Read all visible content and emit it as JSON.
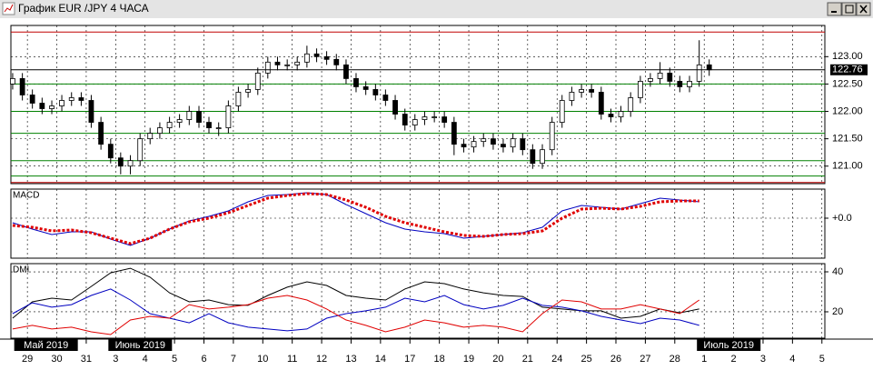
{
  "window_title": "График EUR /JPY  4 ЧАСА",
  "chart_data": [
    {
      "type": "candlestick",
      "x": [
        -0.5,
        -0.17,
        0.17,
        0.5,
        0.83,
        1.17,
        1.5,
        1.83,
        2.17,
        2.5,
        2.83,
        3.17,
        3.5,
        3.83,
        4.17,
        4.5,
        4.83,
        5.17,
        5.5,
        5.83,
        6.17,
        6.5,
        6.83,
        7.17,
        7.5,
        7.83,
        8.17,
        8.5,
        8.83,
        9.17,
        9.5,
        9.83,
        10.17,
        10.5,
        10.83,
        11.17,
        11.5,
        11.83,
        12.17,
        12.5,
        12.83,
        13.17,
        13.5,
        13.83,
        14.17,
        14.5,
        14.83,
        15.17,
        15.5,
        15.83,
        16.17,
        16.5,
        16.83,
        17.17,
        17.5,
        17.83,
        18.17,
        18.5,
        18.83,
        19.17,
        19.5,
        19.83,
        20.17,
        20.5,
        20.83,
        21.17,
        21.5,
        21.83,
        22.17,
        22.5,
        22.83,
        23.17
      ],
      "open": [
        122.5,
        122.6,
        122.3,
        122.15,
        122.05,
        122.1,
        122.2,
        122.25,
        122.2,
        121.8,
        121.4,
        121.15,
        121.0,
        121.1,
        121.5,
        121.6,
        121.7,
        121.8,
        121.85,
        122.0,
        121.8,
        121.7,
        121.7,
        122.1,
        122.35,
        122.4,
        122.7,
        122.9,
        122.85,
        122.85,
        122.9,
        123.05,
        123.0,
        122.95,
        122.85,
        122.6,
        122.45,
        122.4,
        122.3,
        122.2,
        121.95,
        121.75,
        121.85,
        121.9,
        121.9,
        121.8,
        121.4,
        121.35,
        121.45,
        121.5,
        121.4,
        121.35,
        121.5,
        121.3,
        121.05,
        121.3,
        121.8,
        122.2,
        122.35,
        122.4,
        122.35,
        121.95,
        121.9,
        122.0,
        122.25,
        122.55,
        122.6,
        122.7,
        122.55,
        122.45,
        122.55,
        122.85
      ],
      "high": [
        122.7,
        122.7,
        122.4,
        122.25,
        122.2,
        122.3,
        122.35,
        122.35,
        122.3,
        121.9,
        121.5,
        121.25,
        121.2,
        121.6,
        121.7,
        121.8,
        121.9,
        121.95,
        122.1,
        122.1,
        121.9,
        121.8,
        122.2,
        122.45,
        122.5,
        122.8,
        123.0,
        123.0,
        122.95,
        123.0,
        123.2,
        123.15,
        123.1,
        123.05,
        122.95,
        122.7,
        122.55,
        122.5,
        122.4,
        122.3,
        122.05,
        121.95,
        122.0,
        122.0,
        122.0,
        121.9,
        121.5,
        121.55,
        121.6,
        121.6,
        121.5,
        121.6,
        121.6,
        121.4,
        121.4,
        121.9,
        122.3,
        122.45,
        122.5,
        122.5,
        122.45,
        122.05,
        122.1,
        122.35,
        122.65,
        122.7,
        122.9,
        122.8,
        122.65,
        122.65,
        123.3,
        122.95
      ],
      "low": [
        122.4,
        122.2,
        122.05,
        121.95,
        121.95,
        122.0,
        122.1,
        122.1,
        121.7,
        121.3,
        121.05,
        120.85,
        120.85,
        121.0,
        121.4,
        121.5,
        121.6,
        121.7,
        121.75,
        121.7,
        121.6,
        121.55,
        121.6,
        122.0,
        122.25,
        122.3,
        122.6,
        122.75,
        122.75,
        122.75,
        122.8,
        122.9,
        122.85,
        122.75,
        122.5,
        122.35,
        122.3,
        122.2,
        122.1,
        121.85,
        121.65,
        121.65,
        121.75,
        121.8,
        121.7,
        121.2,
        121.25,
        121.25,
        121.35,
        121.3,
        121.25,
        121.25,
        121.2,
        120.95,
        120.95,
        121.2,
        121.7,
        122.1,
        122.25,
        122.25,
        121.85,
        121.8,
        121.8,
        121.9,
        122.15,
        122.45,
        122.5,
        122.45,
        122.35,
        122.35,
        122.45,
        122.65
      ],
      "close": [
        122.6,
        122.3,
        122.15,
        122.05,
        122.1,
        122.2,
        122.25,
        122.2,
        121.8,
        121.4,
        121.15,
        121.0,
        121.1,
        121.5,
        121.6,
        121.7,
        121.8,
        121.85,
        122.0,
        121.8,
        121.7,
        121.7,
        122.1,
        122.35,
        122.4,
        122.7,
        122.9,
        122.85,
        122.85,
        122.9,
        123.05,
        123.0,
        122.95,
        122.85,
        122.6,
        122.45,
        122.4,
        122.3,
        122.2,
        121.95,
        121.75,
        121.85,
        121.9,
        121.9,
        121.8,
        121.4,
        121.35,
        121.45,
        121.5,
        121.4,
        121.35,
        121.5,
        121.3,
        121.05,
        121.3,
        121.8,
        122.2,
        122.35,
        122.4,
        122.35,
        121.95,
        121.9,
        122.0,
        122.25,
        122.55,
        122.6,
        122.7,
        122.55,
        122.45,
        122.55,
        122.85,
        122.76
      ],
      "last": 122.76,
      "levels": [
        {
          "value": 123.45,
          "color": "#c00000"
        },
        {
          "value": 122.5,
          "color": "#008000"
        },
        {
          "value": 122.0,
          "color": "#008000"
        },
        {
          "value": 121.6,
          "color": "#008000"
        },
        {
          "value": 121.1,
          "color": "#008000"
        },
        {
          "value": 120.82,
          "color": "#008000"
        },
        {
          "value": 120.7,
          "color": "#c00000"
        }
      ],
      "ylim": [
        120.68,
        123.57
      ],
      "yticks": [
        {
          "value": 123,
          "label": "123.00"
        },
        {
          "value": 122.5,
          "label": "122.50"
        },
        {
          "value": 122,
          "label": "122.00"
        },
        {
          "value": 121.5,
          "label": "121.50"
        },
        {
          "value": 121,
          "label": "121.00"
        }
      ],
      "xlim": [
        -0.56,
        27.1
      ],
      "xticks": [
        {
          "value": 0,
          "label": "29"
        },
        {
          "value": 1,
          "label": "30"
        },
        {
          "value": 2,
          "label": "31"
        },
        {
          "value": 3,
          "label": "3"
        },
        {
          "value": 4,
          "label": "4"
        },
        {
          "value": 5,
          "label": "5"
        },
        {
          "value": 6,
          "label": "6"
        },
        {
          "value": 7,
          "label": "7"
        },
        {
          "value": 8,
          "label": "10"
        },
        {
          "value": 9,
          "label": "11"
        },
        {
          "value": 10,
          "label": "12"
        },
        {
          "value": 11,
          "label": "13"
        },
        {
          "value": 12,
          "label": "14"
        },
        {
          "value": 13,
          "label": "17"
        },
        {
          "value": 14,
          "label": "18"
        },
        {
          "value": 15,
          "label": "19"
        },
        {
          "value": 16,
          "label": "20"
        },
        {
          "value": 17,
          "label": "21"
        },
        {
          "value": 18,
          "label": "24"
        },
        {
          "value": 19,
          "label": "25"
        },
        {
          "value": 20,
          "label": "26"
        },
        {
          "value": 21,
          "label": "27"
        },
        {
          "value": 22,
          "label": "28"
        },
        {
          "value": 23,
          "label": "1"
        },
        {
          "value": 24,
          "label": "2"
        },
        {
          "value": 25,
          "label": "3"
        },
        {
          "value": 26,
          "label": "4"
        },
        {
          "value": 27,
          "label": "5"
        }
      ],
      "month_labels": [
        {
          "value": -0.2,
          "label": "Май 2019"
        },
        {
          "value": 3,
          "label": "Июнь 2019"
        },
        {
          "value": 23,
          "label": "Июль 2019"
        }
      ],
      "grid": true
    },
    {
      "type": "line",
      "title": "MACD",
      "x": [
        -0.5,
        0.17,
        0.83,
        1.5,
        2.17,
        2.83,
        3.5,
        4.17,
        4.83,
        5.5,
        6.17,
        6.83,
        7.5,
        8.17,
        8.83,
        9.5,
        10.17,
        10.83,
        11.5,
        12.17,
        12.83,
        13.5,
        14.17,
        14.83,
        15.5,
        16.17,
        16.83,
        17.5,
        18.17,
        18.83,
        19.5,
        20.17,
        20.83,
        21.5,
        22.17,
        22.83
      ],
      "series": [
        {
          "color": "#0000c0",
          "style": "solid",
          "values": [
            -0.05,
            -0.12,
            -0.18,
            -0.15,
            -0.15,
            -0.23,
            -0.3,
            -0.22,
            -0.12,
            -0.03,
            0.02,
            0.08,
            0.18,
            0.25,
            0.26,
            0.28,
            0.26,
            0.15,
            0.05,
            -0.05,
            -0.12,
            -0.15,
            -0.17,
            -0.22,
            -0.2,
            -0.18,
            -0.16,
            -0.1,
            0.08,
            0.14,
            0.12,
            0.1,
            0.16,
            0.22,
            0.2,
            0.18
          ]
        },
        {
          "color": "#e00000",
          "style": "dotted",
          "values": [
            -0.08,
            -0.1,
            -0.14,
            -0.13,
            -0.16,
            -0.22,
            -0.28,
            -0.22,
            -0.12,
            -0.04,
            0,
            0.06,
            0.14,
            0.22,
            0.25,
            0.27,
            0.26,
            0.2,
            0.12,
            0.02,
            -0.05,
            -0.1,
            -0.15,
            -0.19,
            -0.2,
            -0.18,
            -0.17,
            -0.14,
            0,
            0.1,
            0.11,
            0.1,
            0.13,
            0.18,
            0.19,
            0.19
          ]
        }
      ],
      "ylim": [
        -0.44,
        0.32
      ],
      "yticks": [
        {
          "value": 0,
          "label": "+0.0"
        }
      ],
      "grid": true
    },
    {
      "type": "line",
      "title": "DMI",
      "x": [
        -0.5,
        0.17,
        0.83,
        1.5,
        2.17,
        2.83,
        3.5,
        4.17,
        4.83,
        5.5,
        6.17,
        6.83,
        7.5,
        8.17,
        8.83,
        9.5,
        10.17,
        10.83,
        11.5,
        12.17,
        12.83,
        13.5,
        14.17,
        14.83,
        15.5,
        16.17,
        16.83,
        17.5,
        18.17,
        18.83,
        19.5,
        20.17,
        20.83,
        21.5,
        22.17,
        22.83
      ],
      "series": [
        {
          "color": "#000000",
          "style": "solid",
          "values": [
            16.8,
            25,
            26.8,
            25.9,
            32.7,
            39.5,
            41.8,
            37.3,
            29.5,
            25,
            25.9,
            23.6,
            23.2,
            28.2,
            32.3,
            35,
            33.2,
            28.2,
            26.8,
            25.9,
            31.4,
            35,
            34.1,
            31.4,
            29.5,
            28.2,
            27.7,
            22.3,
            21.4,
            20.5,
            20.5,
            16.8,
            17.7,
            21.4,
            19.5,
            21.4
          ]
        },
        {
          "color": "#0000c0",
          "style": "solid",
          "values": [
            19.1,
            24.5,
            22.3,
            23.6,
            28.2,
            31.4,
            25.9,
            19.1,
            16.8,
            14.5,
            19.1,
            14.5,
            12.3,
            11.4,
            10.5,
            11.4,
            16.8,
            19.1,
            20.5,
            22.3,
            26.8,
            25,
            28.2,
            23.6,
            21.4,
            23.2,
            26.8,
            23.2,
            22.3,
            20.5,
            17.7,
            15.9,
            14.1,
            16.8,
            15.9,
            13.2
          ]
        },
        {
          "color": "#e00000",
          "style": "solid",
          "values": [
            11.4,
            13.2,
            11.4,
            12.3,
            10,
            8.6,
            15.9,
            17.7,
            16.8,
            23.6,
            21.4,
            22.3,
            23.6,
            26.8,
            28.2,
            25.9,
            21.4,
            15.9,
            13.2,
            10,
            12.3,
            15.9,
            14.5,
            12.3,
            13.2,
            12.3,
            10,
            19.1,
            25.9,
            25,
            21.4,
            21.4,
            23.6,
            21.4,
            19.1,
            25.9
          ]
        }
      ],
      "ylim": [
        6.8,
        44.1
      ],
      "yticks": [
        20,
        40
      ],
      "grid": true
    }
  ]
}
